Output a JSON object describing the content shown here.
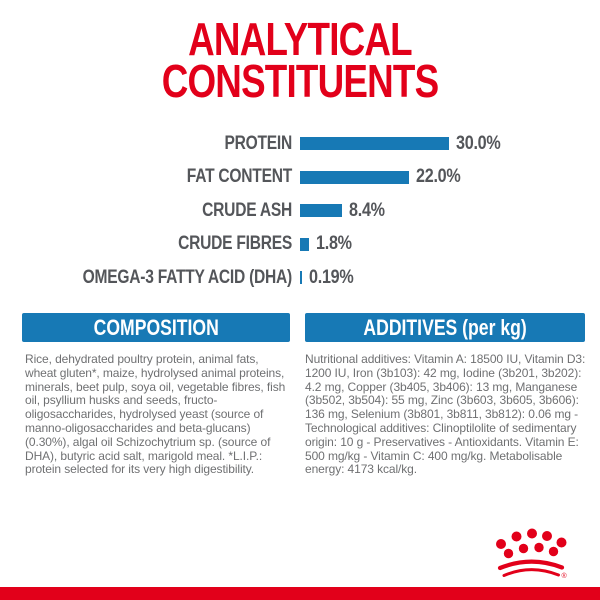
{
  "title": {
    "line1": "ANALYTICAL",
    "line2": "CONSTITUENTS"
  },
  "chart_data": {
    "type": "bar",
    "orientation": "horizontal",
    "categories": [
      "PROTEIN",
      "FAT CONTENT",
      "CRUDE ASH",
      "CRUDE FIBRES",
      "OMEGA-3 FATTY ACID (DHA)"
    ],
    "values": [
      30.0,
      22.0,
      8.4,
      1.8,
      0.19
    ],
    "value_labels": [
      "30.0%",
      "22.0%",
      "8.4%",
      "1.8%",
      "0.19%"
    ],
    "xlim": [
      0,
      30
    ],
    "grid": false,
    "legend": "none",
    "bar_color": "#1779b5",
    "label_color": "#54565a"
  },
  "sections": {
    "composition": {
      "header": "COMPOSITION",
      "body": "Rice, dehydrated poultry protein, animal fats, wheat gluten*, maize, hydrolysed animal proteins, minerals, beet pulp, soya oil, vegetable fibres, fish oil, psyllium husks and seeds, fructo-oligosaccharides, hydrolysed yeast (source of manno-oligosaccharides and beta-glucans) (0.30%), algal oil Schizochytrium sp. (source of DHA), butyric acid salt, marigold meal. *L.I.P.: protein selected for its very high digestibility."
    },
    "additives": {
      "header": "ADDITIVES (per kg)",
      "body": "Nutritional additives: Vitamin A: 18500 IU, Vitamin D3: 1200 IU, Iron (3b103): 42 mg, Iodine (3b201, 3b202): 4.2 mg, Copper (3b405, 3b406): 13 mg, Manganese (3b502, 3b504): 55 mg, Zinc (3b603, 3b605, 3b606): 136 mg, Selenium (3b801, 3b811, 3b812): 0.06 mg - Technological additives: Clinoptilolite of sedimentary origin: 10 g - Preservatives - Antioxidants. Vitamin E: 500 mg/kg - Vitamin C: 400 mg/kg. Metabolisable energy: 4173 kcal/kg."
    }
  },
  "branding": {
    "logo": "royal-canin-crown",
    "registered_mark": "®"
  },
  "colors": {
    "red": "#e2001a",
    "blue": "#1779b5",
    "label_gray": "#54565a",
    "body_gray": "#6f7072"
  }
}
